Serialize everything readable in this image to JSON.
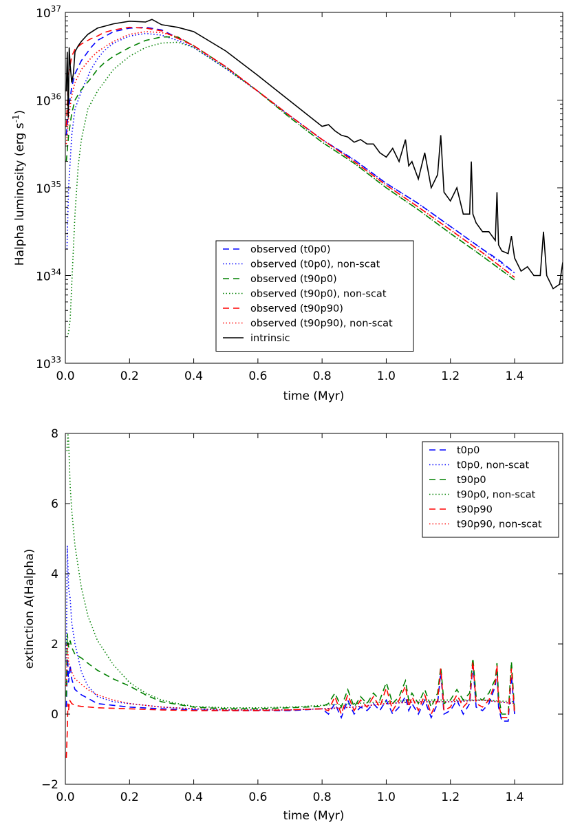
{
  "chart_data": [
    {
      "type": "line",
      "yscale": "log",
      "xlabel": "time (Myr)",
      "ylabel_main": "Halpha luminosity (erg s",
      "ylabel_sup": "-1",
      "ylabel_end": ")",
      "xlim": [
        0.0,
        1.55
      ],
      "ylim_exp": [
        33,
        37
      ],
      "xticks": [
        0.0,
        0.2,
        0.4,
        0.6,
        0.8,
        1.0,
        1.2,
        1.4
      ],
      "xtick_labels": [
        "0.0",
        "0.2",
        "0.4",
        "0.6",
        "0.8",
        "1.0",
        "1.2",
        "1.4"
      ],
      "yticks_exp": [
        33,
        34,
        35,
        36,
        37
      ],
      "ytick_base": "10",
      "ytick_exp_labels": [
        "33",
        "34",
        "35",
        "36",
        "37"
      ],
      "legend_position": "lower-center",
      "series": [
        {
          "name": "observed (t0p0)",
          "color": "#0000ff",
          "style": "dashed",
          "x": [
            0.003,
            0.01,
            0.02,
            0.03,
            0.05,
            0.08,
            0.1,
            0.12,
            0.15,
            0.2,
            0.25,
            0.3,
            0.4,
            0.5,
            0.6,
            0.7,
            0.8,
            0.9,
            1.0,
            1.1,
            1.2,
            1.3,
            1.35,
            1.4
          ],
          "y": [
            35.6,
            35.9,
            36.15,
            36.3,
            36.45,
            36.6,
            36.68,
            36.72,
            36.78,
            36.82,
            36.83,
            36.8,
            36.62,
            36.38,
            36.1,
            35.82,
            35.55,
            35.32,
            35.05,
            34.82,
            34.56,
            34.3,
            34.18,
            34.03
          ]
        },
        {
          "name": "observed (t0p0), non-scat",
          "color": "#0000ff",
          "style": "dotted",
          "x": [
            0.005,
            0.01,
            0.02,
            0.03,
            0.05,
            0.08,
            0.1,
            0.12,
            0.15,
            0.2,
            0.25,
            0.3,
            0.35,
            0.4,
            0.5,
            0.6,
            0.7,
            0.8,
            0.9,
            1.0,
            1.1,
            1.2,
            1.3,
            1.4
          ],
          "y": [
            34.3,
            35.0,
            35.6,
            35.9,
            36.1,
            36.35,
            36.47,
            36.56,
            36.65,
            36.73,
            36.76,
            36.74,
            36.68,
            36.6,
            36.36,
            36.1,
            35.82,
            35.55,
            35.32,
            35.05,
            34.82,
            34.56,
            34.3,
            34.03
          ]
        },
        {
          "name": "observed (t90p0)",
          "color": "#008000",
          "style": "dashed",
          "x": [
            0.003,
            0.01,
            0.02,
            0.03,
            0.05,
            0.08,
            0.1,
            0.12,
            0.15,
            0.2,
            0.25,
            0.3,
            0.35,
            0.4,
            0.5,
            0.6,
            0.7,
            0.8,
            0.9,
            1.0,
            1.1,
            1.2,
            1.3,
            1.4
          ],
          "y": [
            35.3,
            35.6,
            35.85,
            36.0,
            36.12,
            36.25,
            36.35,
            36.42,
            36.5,
            36.6,
            36.68,
            36.72,
            36.72,
            36.62,
            36.38,
            36.1,
            35.8,
            35.52,
            35.28,
            35.0,
            34.75,
            34.48,
            34.22,
            33.95
          ]
        },
        {
          "name": "observed (t90p0), non-scat",
          "color": "#008000",
          "style": "dotted",
          "x": [
            0.005,
            0.01,
            0.015,
            0.02,
            0.03,
            0.04,
            0.05,
            0.07,
            0.1,
            0.15,
            0.2,
            0.25,
            0.3,
            0.35,
            0.4,
            0.5,
            0.6,
            0.7,
            0.8,
            0.9,
            1.0,
            1.1,
            1.2,
            1.3,
            1.4
          ],
          "y": [
            33.3,
            33.35,
            33.5,
            33.9,
            34.7,
            35.25,
            35.55,
            35.9,
            36.1,
            36.35,
            36.5,
            36.6,
            36.65,
            36.66,
            36.6,
            36.36,
            36.1,
            35.8,
            35.52,
            35.28,
            35.0,
            34.75,
            34.48,
            34.22,
            33.95
          ]
        },
        {
          "name": "observed (t90p90)",
          "color": "#ff0000",
          "style": "dashed",
          "x": [
            0.003,
            0.01,
            0.02,
            0.03,
            0.05,
            0.08,
            0.1,
            0.12,
            0.15,
            0.2,
            0.25,
            0.3,
            0.4,
            0.5,
            0.6,
            0.7,
            0.8,
            0.9,
            1.0,
            1.1,
            1.2,
            1.3,
            1.35,
            1.4
          ],
          "y": [
            35.7,
            36.3,
            36.5,
            36.58,
            36.64,
            36.7,
            36.73,
            36.77,
            36.8,
            36.83,
            36.82,
            36.79,
            36.62,
            36.38,
            36.1,
            35.82,
            35.55,
            35.3,
            35.03,
            34.78,
            34.52,
            34.26,
            34.12,
            33.98
          ]
        },
        {
          "name": "observed (t90p90), non-scat",
          "color": "#ff0000",
          "style": "dotted",
          "x": [
            0.003,
            0.01,
            0.02,
            0.03,
            0.05,
            0.08,
            0.1,
            0.12,
            0.15,
            0.2,
            0.25,
            0.3,
            0.35,
            0.4,
            0.5,
            0.6,
            0.7,
            0.8,
            0.9,
            1.0,
            1.1,
            1.2,
            1.3,
            1.4
          ],
          "y": [
            35.5,
            35.8,
            36.05,
            36.2,
            36.35,
            36.48,
            36.55,
            36.6,
            36.67,
            36.75,
            36.78,
            36.77,
            36.72,
            36.62,
            36.38,
            36.1,
            35.82,
            35.55,
            35.3,
            35.03,
            34.78,
            34.52,
            34.26,
            33.98
          ]
        },
        {
          "name": "intrinsic",
          "color": "#000000",
          "style": "solid",
          "x": [
            0.003,
            0.006,
            0.009,
            0.012,
            0.015,
            0.02,
            0.025,
            0.03,
            0.04,
            0.05,
            0.07,
            0.1,
            0.15,
            0.2,
            0.25,
            0.27,
            0.3,
            0.35,
            0.4,
            0.5,
            0.6,
            0.7,
            0.8,
            0.82,
            0.84,
            0.86,
            0.88,
            0.9,
            0.92,
            0.94,
            0.96,
            0.98,
            1.0,
            1.02,
            1.04,
            1.06,
            1.07,
            1.08,
            1.1,
            1.12,
            1.14,
            1.16,
            1.17,
            1.18,
            1.2,
            1.22,
            1.24,
            1.26,
            1.265,
            1.27,
            1.28,
            1.3,
            1.32,
            1.34,
            1.345,
            1.35,
            1.36,
            1.38,
            1.39,
            1.4,
            1.42,
            1.44,
            1.46,
            1.48,
            1.49,
            1.5,
            1.52,
            1.54,
            1.55
          ],
          "y": [
            36.1,
            36.55,
            35.8,
            36.6,
            36.4,
            36.2,
            36.3,
            36.55,
            36.62,
            36.67,
            36.75,
            36.82,
            36.87,
            36.9,
            36.89,
            36.92,
            36.86,
            36.83,
            36.78,
            36.56,
            36.28,
            35.99,
            35.7,
            35.72,
            35.65,
            35.6,
            35.58,
            35.52,
            35.55,
            35.5,
            35.5,
            35.4,
            35.35,
            35.45,
            35.3,
            35.55,
            35.25,
            35.3,
            35.1,
            35.4,
            35.0,
            35.15,
            35.6,
            34.95,
            34.85,
            35.0,
            34.7,
            34.7,
            35.3,
            34.7,
            34.6,
            34.5,
            34.5,
            34.4,
            34.95,
            34.35,
            34.28,
            34.25,
            34.45,
            34.2,
            34.05,
            34.1,
            34.0,
            34.0,
            34.5,
            34.0,
            33.85,
            33.9,
            34.15
          ]
        }
      ]
    },
    {
      "type": "line",
      "yscale": "linear",
      "xlabel": "time (Myr)",
      "ylabel": "extinction A(Halpha)",
      "xlim": [
        0.0,
        1.55
      ],
      "ylim": [
        -2,
        8
      ],
      "xticks": [
        0.0,
        0.2,
        0.4,
        0.6,
        0.8,
        1.0,
        1.2,
        1.4
      ],
      "xtick_labels": [
        "0.0",
        "0.2",
        "0.4",
        "0.6",
        "0.8",
        "1.0",
        "1.2",
        "1.4"
      ],
      "yticks": [
        -2,
        0,
        2,
        4,
        6,
        8
      ],
      "ytick_labels": [
        "−2",
        "0",
        "2",
        "4",
        "6",
        "8"
      ],
      "legend_position": "upper-right",
      "series": [
        {
          "name": "t0p0",
          "color": "#0000ff",
          "style": "dashed",
          "x": [
            0.003,
            0.007,
            0.01,
            0.015,
            0.02,
            0.03,
            0.05,
            0.07,
            0.1,
            0.15,
            0.2,
            0.3,
            0.4,
            0.5,
            0.6,
            0.7,
            0.8,
            0.82,
            0.84,
            0.86,
            0.88,
            0.9,
            0.92,
            0.94,
            0.96,
            0.98,
            1.0,
            1.02,
            1.04,
            1.06,
            1.07,
            1.08,
            1.1,
            1.12,
            1.14,
            1.16,
            1.17,
            1.18,
            1.2,
            1.22,
            1.24,
            1.26,
            1.27,
            1.28,
            1.3,
            1.32,
            1.34,
            1.345,
            1.35,
            1.36,
            1.38,
            1.39,
            1.4
          ],
          "y": [
            0.2,
            1.6,
            0.9,
            1.4,
            1.0,
            0.7,
            0.55,
            0.45,
            0.3,
            0.25,
            0.2,
            0.15,
            0.12,
            0.1,
            0.1,
            0.1,
            0.15,
            0.0,
            0.3,
            -0.1,
            0.4,
            0.0,
            0.2,
            0.1,
            0.3,
            0.1,
            0.4,
            0.0,
            0.2,
            0.5,
            0.1,
            0.3,
            0.0,
            0.4,
            -0.1,
            0.3,
            1.2,
            0.0,
            0.1,
            0.4,
            0.0,
            0.3,
            1.4,
            0.2,
            0.1,
            0.3,
            0.8,
            1.3,
            0.2,
            -0.2,
            -0.2,
            1.1,
            0.0
          ]
        },
        {
          "name": "t0p0, non-scat",
          "color": "#0000ff",
          "style": "dotted",
          "x": [
            0.003,
            0.006,
            0.01,
            0.015,
            0.02,
            0.03,
            0.05,
            0.07,
            0.1,
            0.15,
            0.2,
            0.3,
            0.4,
            0.5,
            0.6,
            0.7,
            0.8,
            0.9,
            1.0,
            1.1,
            1.2,
            1.3,
            1.4
          ],
          "y": [
            1.5,
            4.8,
            3.6,
            3.3,
            2.6,
            2.0,
            1.2,
            0.8,
            0.5,
            0.35,
            0.3,
            0.2,
            0.15,
            0.12,
            0.12,
            0.12,
            0.15,
            0.2,
            0.3,
            0.35,
            0.35,
            0.4,
            0.3
          ]
        },
        {
          "name": "t90p0",
          "color": "#008000",
          "style": "dashed",
          "x": [
            0.003,
            0.006,
            0.01,
            0.015,
            0.02,
            0.03,
            0.05,
            0.07,
            0.1,
            0.15,
            0.2,
            0.25,
            0.3,
            0.4,
            0.5,
            0.6,
            0.7,
            0.8,
            0.82,
            0.84,
            0.86,
            0.88,
            0.9,
            0.92,
            0.94,
            0.96,
            0.98,
            1.0,
            1.02,
            1.04,
            1.06,
            1.07,
            1.08,
            1.1,
            1.12,
            1.14,
            1.16,
            1.17,
            1.18,
            1.2,
            1.22,
            1.24,
            1.26,
            1.27,
            1.28,
            1.3,
            1.32,
            1.34,
            1.345,
            1.35,
            1.36,
            1.38,
            1.39,
            1.4
          ],
          "y": [
            0.5,
            2.3,
            1.9,
            2.1,
            1.9,
            1.7,
            1.6,
            1.45,
            1.25,
            1.0,
            0.8,
            0.55,
            0.35,
            0.2,
            0.15,
            0.15,
            0.18,
            0.22,
            0.3,
            0.6,
            0.2,
            0.7,
            0.2,
            0.5,
            0.3,
            0.6,
            0.4,
            0.9,
            0.3,
            0.5,
            0.95,
            0.4,
            0.6,
            0.3,
            0.7,
            0.2,
            0.6,
            1.35,
            0.3,
            0.4,
            0.7,
            0.4,
            0.6,
            1.6,
            0.5,
            0.4,
            0.6,
            1.0,
            1.45,
            0.5,
            0.0,
            0.0,
            1.5,
            0.1
          ]
        },
        {
          "name": "t90p0, non-scat",
          "color": "#008000",
          "style": "dotted",
          "x": [
            0.005,
            0.008,
            0.01,
            0.015,
            0.02,
            0.03,
            0.05,
            0.07,
            0.1,
            0.15,
            0.2,
            0.25,
            0.3,
            0.35,
            0.4,
            0.5,
            0.6,
            0.7,
            0.8,
            0.9,
            1.0,
            1.1,
            1.2,
            1.3,
            1.4
          ],
          "y": [
            7.5,
            8.0,
            7.8,
            6.5,
            5.8,
            4.8,
            3.6,
            2.8,
            2.1,
            1.4,
            0.9,
            0.6,
            0.4,
            0.3,
            0.22,
            0.18,
            0.18,
            0.2,
            0.25,
            0.3,
            0.35,
            0.4,
            0.4,
            0.4,
            0.35
          ]
        },
        {
          "name": "t90p90",
          "color": "#ff0000",
          "style": "dashed",
          "x": [
            0.003,
            0.006,
            0.008,
            0.01,
            0.013,
            0.02,
            0.03,
            0.05,
            0.1,
            0.2,
            0.3,
            0.4,
            0.5,
            0.6,
            0.7,
            0.8,
            0.82,
            0.84,
            0.86,
            0.88,
            0.9,
            0.92,
            0.94,
            0.96,
            0.98,
            1.0,
            1.02,
            1.04,
            1.06,
            1.07,
            1.08,
            1.1,
            1.12,
            1.14,
            1.16,
            1.17,
            1.18,
            1.2,
            1.22,
            1.24,
            1.26,
            1.27,
            1.28,
            1.3,
            1.32,
            1.34,
            1.345,
            1.35,
            1.36,
            1.38,
            1.39,
            1.4
          ],
          "y": [
            -1.25,
            -0.5,
            0.3,
            0.1,
            0.4,
            0.3,
            0.25,
            0.22,
            0.18,
            0.15,
            0.12,
            0.1,
            0.1,
            0.1,
            0.12,
            0.15,
            0.1,
            0.5,
            0.0,
            0.55,
            0.1,
            0.4,
            0.2,
            0.5,
            0.2,
            0.75,
            0.1,
            0.4,
            0.8,
            0.2,
            0.5,
            0.1,
            0.55,
            0.0,
            0.4,
            1.3,
            0.1,
            0.2,
            0.55,
            0.2,
            0.4,
            1.5,
            0.3,
            0.2,
            0.4,
            0.9,
            1.4,
            0.3,
            -0.1,
            -0.1,
            1.3,
            0.0
          ]
        },
        {
          "name": "t90p90, non-scat",
          "color": "#ff0000",
          "style": "dotted",
          "x": [
            0.003,
            0.006,
            0.01,
            0.015,
            0.02,
            0.03,
            0.05,
            0.07,
            0.1,
            0.15,
            0.2,
            0.3,
            0.4,
            0.5,
            0.6,
            0.7,
            0.8,
            0.9,
            1.0,
            1.1,
            1.2,
            1.3,
            1.4
          ],
          "y": [
            0.8,
            2.0,
            1.5,
            1.3,
            1.2,
            1.0,
            0.85,
            0.7,
            0.55,
            0.4,
            0.3,
            0.2,
            0.15,
            0.12,
            0.12,
            0.12,
            0.15,
            0.2,
            0.3,
            0.35,
            0.35,
            0.4,
            0.3
          ]
        }
      ]
    }
  ]
}
